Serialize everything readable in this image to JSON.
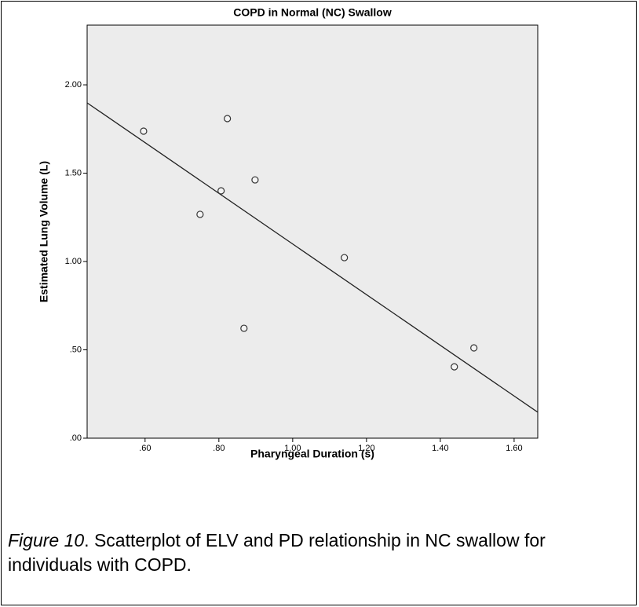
{
  "chart_data": {
    "type": "scatter",
    "title": "COPD in Normal (NC) Swallow",
    "x_label": "Pharyngeal Duration (s)",
    "y_label": "Estimated Lung Volume (L)",
    "x": [
      0.596,
      0.823,
      0.749,
      0.806,
      0.898,
      0.868,
      1.14,
      1.438,
      1.491
    ],
    "values": [
      1.738,
      1.809,
      1.267,
      1.4,
      1.462,
      0.622,
      1.022,
      0.404,
      0.511
    ],
    "color": "#333333",
    "fit": {
      "x": [
        0.443,
        1.664
      ],
      "y": [
        1.898,
        0.147
      ]
    },
    "xlim": [
      0.443,
      1.664
    ],
    "xticks": [
      {
        "value": 0.6,
        "label": ".60"
      },
      {
        "value": 0.8,
        "label": ".80"
      },
      {
        "value": 1.0,
        "label": "1.00"
      },
      {
        "value": 1.2,
        "label": "1.20"
      },
      {
        "value": 1.4,
        "label": "1.40"
      },
      {
        "value": 1.6,
        "label": "1.60"
      }
    ],
    "ylim": [
      0,
      2.338
    ],
    "yticks": [
      {
        "value": 0,
        "label": ".00"
      },
      {
        "value": 0.5,
        "label": ".50"
      },
      {
        "value": 1.0,
        "label": "1.00"
      },
      {
        "value": 1.5,
        "label": "1.50"
      },
      {
        "value": 2.0,
        "label": "2.00"
      }
    ],
    "grid": false
  },
  "caption": {
    "label": "Figure 10",
    "text": ". Scatterplot of ELV and PD relationship in NC swallow for individuals with COPD."
  }
}
